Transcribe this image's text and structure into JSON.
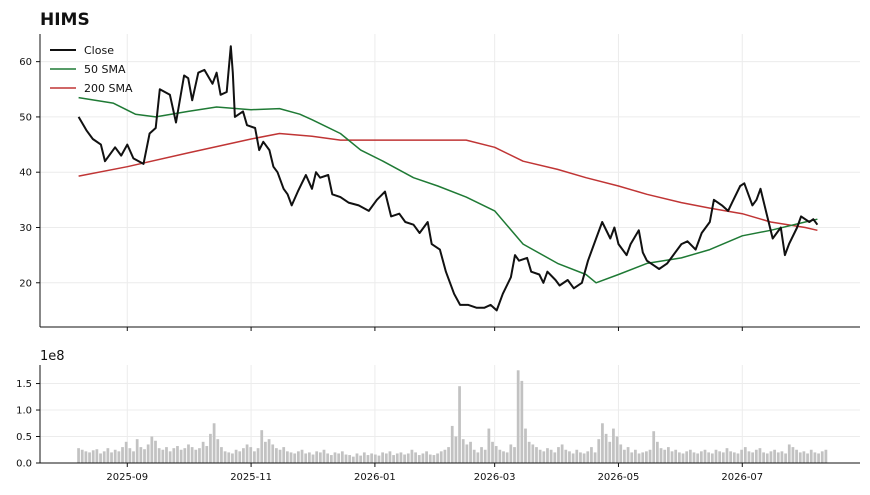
{
  "chart_data": [
    {
      "type": "line",
      "title": "HIMS",
      "xlabel": "",
      "ylabel": "",
      "x_ticks": [
        "2025-09",
        "2025-11",
        "2026-01",
        "2026-03",
        "2026-05",
        "2026-07"
      ],
      "x_range": [
        "2025-07-20",
        "2026-08-28"
      ],
      "ylim": [
        12,
        65
      ],
      "y_ticks": [
        20,
        30,
        40,
        50,
        60
      ],
      "grid": true,
      "legend": "top-left",
      "series": [
        {
          "name": "Close",
          "color": "#111111",
          "points": [
            [
              "2025-08-08",
              50.0
            ],
            [
              "2025-08-12",
              47.5
            ],
            [
              "2025-08-15",
              46.0
            ],
            [
              "2025-08-19",
              45.0
            ],
            [
              "2025-08-21",
              42.0
            ],
            [
              "2025-08-26",
              44.5
            ],
            [
              "2025-08-29",
              43.0
            ],
            [
              "2025-09-01",
              45.0
            ],
            [
              "2025-09-04",
              42.5
            ],
            [
              "2025-09-09",
              41.5
            ],
            [
              "2025-09-12",
              47.0
            ],
            [
              "2025-09-15",
              48.0
            ],
            [
              "2025-09-17",
              55.0
            ],
            [
              "2025-09-22",
              54.0
            ],
            [
              "2025-09-25",
              49.0
            ],
            [
              "2025-09-29",
              57.5
            ],
            [
              "2025-10-01",
              57.0
            ],
            [
              "2025-10-03",
              53.0
            ],
            [
              "2025-10-06",
              58.0
            ],
            [
              "2025-10-09",
              58.5
            ],
            [
              "2025-10-13",
              56.0
            ],
            [
              "2025-10-15",
              58.0
            ],
            [
              "2025-10-17",
              54.0
            ],
            [
              "2025-10-20",
              54.5
            ],
            [
              "2025-10-22",
              62.8
            ],
            [
              "2025-10-23",
              58.0
            ],
            [
              "2025-10-24",
              50.0
            ],
            [
              "2025-10-28",
              51.0
            ],
            [
              "2025-10-30",
              48.5
            ],
            [
              "2025-11-03",
              48.0
            ],
            [
              "2025-11-05",
              44.0
            ],
            [
              "2025-11-07",
              45.5
            ],
            [
              "2025-11-10",
              44.0
            ],
            [
              "2025-11-12",
              41.0
            ],
            [
              "2025-11-14",
              40.0
            ],
            [
              "2025-11-17",
              37.0
            ],
            [
              "2025-11-19",
              36.0
            ],
            [
              "2025-11-21",
              34.0
            ],
            [
              "2025-11-24",
              36.5
            ],
            [
              "2025-11-26",
              38.0
            ],
            [
              "2025-11-28",
              39.5
            ],
            [
              "2025-12-01",
              37.0
            ],
            [
              "2025-12-03",
              40.0
            ],
            [
              "2025-12-05",
              39.0
            ],
            [
              "2025-12-09",
              39.5
            ],
            [
              "2025-12-11",
              36.0
            ],
            [
              "2025-12-15",
              35.5
            ],
            [
              "2025-12-19",
              34.5
            ],
            [
              "2025-12-24",
              34.0
            ],
            [
              "2025-12-29",
              33.0
            ],
            [
              "2026-01-02",
              35.0
            ],
            [
              "2026-01-06",
              36.5
            ],
            [
              "2026-01-09",
              32.0
            ],
            [
              "2026-01-13",
              32.5
            ],
            [
              "2026-01-16",
              31.0
            ],
            [
              "2026-01-20",
              30.5
            ],
            [
              "2026-01-23",
              29.0
            ],
            [
              "2026-01-27",
              31.0
            ],
            [
              "2026-01-29",
              27.0
            ],
            [
              "2026-02-02",
              26.0
            ],
            [
              "2026-02-05",
              22.0
            ],
            [
              "2026-02-09",
              18.0
            ],
            [
              "2026-02-12",
              16.0
            ],
            [
              "2026-02-16",
              16.0
            ],
            [
              "2026-02-20",
              15.5
            ],
            [
              "2026-02-24",
              15.5
            ],
            [
              "2026-02-27",
              16.0
            ],
            [
              "2026-03-02",
              15.0
            ],
            [
              "2026-03-05",
              18.0
            ],
            [
              "2026-03-09",
              21.0
            ],
            [
              "2026-03-11",
              25.0
            ],
            [
              "2026-03-13",
              24.0
            ],
            [
              "2026-03-17",
              24.5
            ],
            [
              "2026-03-19",
              22.0
            ],
            [
              "2026-03-23",
              21.5
            ],
            [
              "2026-03-25",
              20.0
            ],
            [
              "2026-03-27",
              22.0
            ],
            [
              "2026-03-31",
              20.5
            ],
            [
              "2026-04-02",
              19.5
            ],
            [
              "2026-04-06",
              20.5
            ],
            [
              "2026-04-09",
              19.0
            ],
            [
              "2026-04-13",
              20.0
            ],
            [
              "2026-04-16",
              24.0
            ],
            [
              "2026-04-20",
              28.0
            ],
            [
              "2026-04-23",
              31.0
            ],
            [
              "2026-04-27",
              28.0
            ],
            [
              "2026-04-29",
              30.0
            ],
            [
              "2026-05-01",
              27.0
            ],
            [
              "2026-05-05",
              25.0
            ],
            [
              "2026-05-07",
              27.0
            ],
            [
              "2026-05-11",
              29.5
            ],
            [
              "2026-05-13",
              25.5
            ],
            [
              "2026-05-15",
              24.0
            ],
            [
              "2026-05-19",
              23.0
            ],
            [
              "2026-05-21",
              22.5
            ],
            [
              "2026-05-25",
              23.5
            ],
            [
              "2026-05-28",
              25.0
            ],
            [
              "2026-06-01",
              27.0
            ],
            [
              "2026-06-04",
              27.5
            ],
            [
              "2026-06-08",
              26.0
            ],
            [
              "2026-06-11",
              29.0
            ],
            [
              "2026-06-15",
              31.0
            ],
            [
              "2026-06-17",
              35.0
            ],
            [
              "2026-06-21",
              34.0
            ],
            [
              "2026-06-24",
              33.0
            ],
            [
              "2026-06-26",
              34.5
            ],
            [
              "2026-06-30",
              37.5
            ],
            [
              "2026-07-02",
              38.0
            ],
            [
              "2026-07-06",
              34.0
            ],
            [
              "2026-07-08",
              35.0
            ],
            [
              "2026-07-10",
              37.0
            ],
            [
              "2026-07-13",
              32.5
            ],
            [
              "2026-07-16",
              28.0
            ],
            [
              "2026-07-20",
              30.0
            ],
            [
              "2026-07-22",
              25.0
            ],
            [
              "2026-07-24",
              27.0
            ],
            [
              "2026-07-28",
              30.0
            ],
            [
              "2026-07-30",
              32.0
            ],
            [
              "2026-08-03",
              31.0
            ],
            [
              "2026-08-05",
              31.5
            ],
            [
              "2026-08-07",
              30.5
            ]
          ]
        },
        {
          "name": "50 SMA",
          "color": "#1f7a35",
          "points": [
            [
              "2025-08-08",
              53.5
            ],
            [
              "2025-08-25",
              52.5
            ],
            [
              "2025-09-05",
              50.5
            ],
            [
              "2025-09-15",
              50.0
            ],
            [
              "2025-10-01",
              51.0
            ],
            [
              "2025-10-15",
              51.8
            ],
            [
              "2025-11-01",
              51.3
            ],
            [
              "2025-11-15",
              51.5
            ],
            [
              "2025-11-25",
              50.5
            ],
            [
              "2025-12-01",
              49.5
            ],
            [
              "2025-12-15",
              47.0
            ],
            [
              "2025-12-25",
              44.0
            ],
            [
              "2026-01-05",
              42.0
            ],
            [
              "2026-01-20",
              39.0
            ],
            [
              "2026-02-01",
              37.5
            ],
            [
              "2026-02-15",
              35.5
            ],
            [
              "2026-03-01",
              33.0
            ],
            [
              "2026-03-15",
              27.0
            ],
            [
              "2026-04-01",
              23.5
            ],
            [
              "2026-04-15",
              21.5
            ],
            [
              "2026-04-20",
              20.0
            ],
            [
              "2026-05-01",
              21.5
            ],
            [
              "2026-05-15",
              23.5
            ],
            [
              "2026-06-01",
              24.5
            ],
            [
              "2026-06-15",
              26.0
            ],
            [
              "2026-07-01",
              28.5
            ],
            [
              "2026-07-15",
              29.5
            ],
            [
              "2026-08-01",
              31.0
            ],
            [
              "2026-08-07",
              31.5
            ]
          ]
        },
        {
          "name": "200 SMA",
          "color": "#c03535",
          "points": [
            [
              "2025-08-08",
              39.3
            ],
            [
              "2025-09-01",
              41.0
            ],
            [
              "2025-10-01",
              43.5
            ],
            [
              "2025-11-01",
              46.0
            ],
            [
              "2025-11-15",
              47.0
            ],
            [
              "2025-12-01",
              46.5
            ],
            [
              "2025-12-15",
              45.8
            ],
            [
              "2026-01-15",
              45.8
            ],
            [
              "2026-02-15",
              45.8
            ],
            [
              "2026-03-01",
              44.5
            ],
            [
              "2026-03-15",
              42.0
            ],
            [
              "2026-04-01",
              40.5
            ],
            [
              "2026-04-15",
              39.0
            ],
            [
              "2026-05-01",
              37.5
            ],
            [
              "2026-05-15",
              36.0
            ],
            [
              "2026-06-01",
              34.5
            ],
            [
              "2026-06-15",
              33.5
            ],
            [
              "2026-07-01",
              32.5
            ],
            [
              "2026-07-15",
              31.0
            ],
            [
              "2026-08-01",
              30.0
            ],
            [
              "2026-08-07",
              29.5
            ]
          ]
        }
      ]
    },
    {
      "type": "bar",
      "title": "",
      "xlabel": "",
      "ylabel": "",
      "y_exponent_label": "1e8",
      "ylim": [
        0,
        1.85
      ],
      "y_ticks": [
        "0.0",
        "0.5",
        "1.0",
        "1.5"
      ],
      "y_tick_values": [
        0,
        0.5,
        1.0,
        1.5
      ],
      "color": "#c2c2c2",
      "grid": true,
      "series": [
        {
          "name": "",
          "values": [
            0.28,
            0.25,
            0.22,
            0.2,
            0.24,
            0.26,
            0.18,
            0.22,
            0.28,
            0.2,
            0.25,
            0.22,
            0.3,
            0.4,
            0.28,
            0.22,
            0.45,
            0.3,
            0.26,
            0.35,
            0.5,
            0.42,
            0.28,
            0.25,
            0.3,
            0.22,
            0.28,
            0.32,
            0.25,
            0.28,
            0.35,
            0.3,
            0.25,
            0.28,
            0.4,
            0.32,
            0.55,
            0.75,
            0.45,
            0.3,
            0.22,
            0.2,
            0.18,
            0.25,
            0.22,
            0.28,
            0.35,
            0.3,
            0.22,
            0.28,
            0.62,
            0.4,
            0.45,
            0.35,
            0.28,
            0.25,
            0.3,
            0.22,
            0.2,
            0.18,
            0.22,
            0.25,
            0.18,
            0.2,
            0.16,
            0.22,
            0.2,
            0.25,
            0.18,
            0.15,
            0.2,
            0.18,
            0.22,
            0.16,
            0.15,
            0.12,
            0.18,
            0.14,
            0.2,
            0.15,
            0.18,
            0.16,
            0.14,
            0.2,
            0.18,
            0.22,
            0.15,
            0.18,
            0.2,
            0.16,
            0.18,
            0.25,
            0.2,
            0.15,
            0.18,
            0.22,
            0.16,
            0.15,
            0.18,
            0.22,
            0.25,
            0.3,
            0.7,
            0.5,
            1.45,
            0.45,
            0.35,
            0.4,
            0.25,
            0.2,
            0.3,
            0.25,
            0.65,
            0.4,
            0.32,
            0.25,
            0.22,
            0.2,
            0.35,
            0.3,
            1.75,
            1.55,
            0.65,
            0.4,
            0.35,
            0.3,
            0.25,
            0.22,
            0.28,
            0.25,
            0.2,
            0.3,
            0.35,
            0.25,
            0.22,
            0.18,
            0.25,
            0.2,
            0.18,
            0.22,
            0.3,
            0.2,
            0.45,
            0.75,
            0.55,
            0.4,
            0.65,
            0.5,
            0.35,
            0.25,
            0.3,
            0.2,
            0.25,
            0.18,
            0.2,
            0.22,
            0.25,
            0.6,
            0.4,
            0.28,
            0.25,
            0.3,
            0.22,
            0.25,
            0.2,
            0.18,
            0.22,
            0.25,
            0.2,
            0.18,
            0.22,
            0.25,
            0.2,
            0.18,
            0.25,
            0.22,
            0.2,
            0.28,
            0.22,
            0.2,
            0.18,
            0.25,
            0.3,
            0.22,
            0.2,
            0.25,
            0.28,
            0.2,
            0.18,
            0.22,
            0.25,
            0.2,
            0.22,
            0.18,
            0.35,
            0.3,
            0.25,
            0.2,
            0.22,
            0.18,
            0.25,
            0.2,
            0.18,
            0.22,
            0.25
          ]
        }
      ]
    }
  ]
}
